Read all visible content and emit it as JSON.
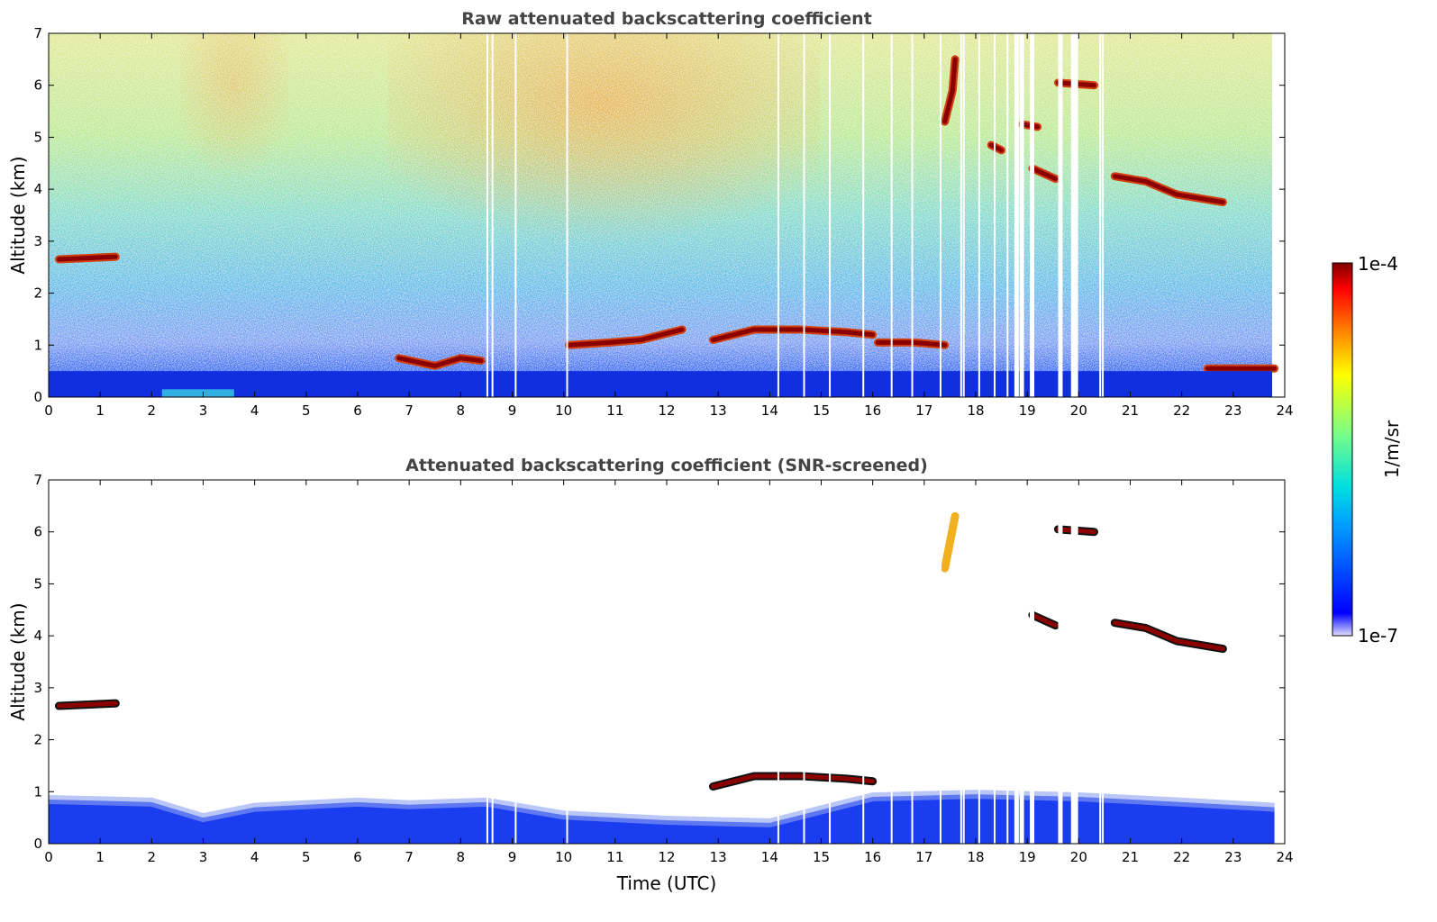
{
  "chart_data": [
    {
      "type": "heatmap",
      "title": "Raw attenuated backscattering coefficient",
      "xlabel": "",
      "ylabel": "Altitude (km)",
      "xlim": [
        0,
        24
      ],
      "ylim": [
        0,
        7
      ],
      "x_ticks": [
        "0",
        "1",
        "2",
        "3",
        "4",
        "5",
        "6",
        "7",
        "8",
        "9",
        "10",
        "11",
        "12",
        "13",
        "14",
        "15",
        "16",
        "17",
        "18",
        "19",
        "20",
        "21",
        "22",
        "23",
        "24"
      ],
      "y_ticks": [
        "0",
        "1",
        "2",
        "3",
        "4",
        "5",
        "6",
        "7"
      ],
      "features": [
        {
          "kind": "cloud_layer",
          "points": [
            [
              0.2,
              2.65
            ],
            [
              1.3,
              2.7
            ]
          ]
        },
        {
          "kind": "cloud_layer",
          "points": [
            [
              6.8,
              0.75
            ],
            [
              7.5,
              0.6
            ],
            [
              8.0,
              0.75
            ],
            [
              8.4,
              0.7
            ]
          ]
        },
        {
          "kind": "cloud_layer",
          "points": [
            [
              10.1,
              1.0
            ],
            [
              10.9,
              1.05
            ],
            [
              11.5,
              1.1
            ],
            [
              12.3,
              1.3
            ]
          ]
        },
        {
          "kind": "cloud_layer",
          "points": [
            [
              12.9,
              1.1
            ],
            [
              13.7,
              1.3
            ],
            [
              14.6,
              1.3
            ],
            [
              15.5,
              1.25
            ],
            [
              16.0,
              1.2
            ]
          ]
        },
        {
          "kind": "cloud_layer",
          "points": [
            [
              16.1,
              1.05
            ],
            [
              16.8,
              1.05
            ],
            [
              17.4,
              1.0
            ]
          ]
        },
        {
          "kind": "cloud_layer",
          "points": [
            [
              17.4,
              5.3
            ],
            [
              17.55,
              5.9
            ],
            [
              17.6,
              6.5
            ]
          ]
        },
        {
          "kind": "cloud_layer",
          "points": [
            [
              19.1,
              4.4
            ],
            [
              19.55,
              4.2
            ]
          ]
        },
        {
          "kind": "cloud_layer",
          "points": [
            [
              19.6,
              6.05
            ],
            [
              20.3,
              6.0
            ]
          ]
        },
        {
          "kind": "cloud_layer",
          "points": [
            [
              20.7,
              4.25
            ],
            [
              21.3,
              4.15
            ],
            [
              21.9,
              3.9
            ],
            [
              22.8,
              3.75
            ]
          ]
        },
        {
          "kind": "cloud_layer",
          "points": [
            [
              22.5,
              0.55
            ],
            [
              23.8,
              0.55
            ]
          ]
        },
        {
          "kind": "cloud_layer",
          "points": [
            [
              18.9,
              5.25
            ],
            [
              19.2,
              5.2
            ]
          ]
        },
        {
          "kind": "cloud_layer",
          "points": [
            [
              18.3,
              4.85
            ],
            [
              18.5,
              4.75
            ]
          ]
        }
      ]
    },
    {
      "type": "heatmap",
      "title": "Attenuated backscattering coefficient (SNR-screened)",
      "xlabel": "Time (UTC)",
      "ylabel": "Altitude (km)",
      "xlim": [
        0,
        24
      ],
      "ylim": [
        0,
        7
      ],
      "x_ticks": [
        "0",
        "1",
        "2",
        "3",
        "4",
        "5",
        "6",
        "7",
        "8",
        "9",
        "10",
        "11",
        "12",
        "13",
        "14",
        "15",
        "16",
        "17",
        "18",
        "19",
        "20",
        "21",
        "22",
        "23",
        "24"
      ],
      "y_ticks": [
        "0",
        "1",
        "2",
        "3",
        "4",
        "5",
        "6",
        "7"
      ],
      "features": [
        {
          "kind": "boundary_layer",
          "points": [
            [
              0,
              0.85
            ],
            [
              2.0,
              0.8
            ],
            [
              3.0,
              0.5
            ],
            [
              4.0,
              0.7
            ],
            [
              6.0,
              0.8
            ],
            [
              7.0,
              0.75
            ],
            [
              8.5,
              0.8
            ],
            [
              10.0,
              0.55
            ],
            [
              12.0,
              0.45
            ],
            [
              14.0,
              0.4
            ],
            [
              16.0,
              0.9
            ],
            [
              18.0,
              0.95
            ],
            [
              20.0,
              0.9
            ],
            [
              22.0,
              0.8
            ],
            [
              23.8,
              0.7
            ]
          ]
        },
        {
          "kind": "cloud_layer",
          "points": [
            [
              0.2,
              2.65
            ],
            [
              1.3,
              2.7
            ]
          ]
        },
        {
          "kind": "cloud_layer",
          "points": [
            [
              12.9,
              1.1
            ],
            [
              13.7,
              1.3
            ],
            [
              14.6,
              1.3
            ],
            [
              15.5,
              1.25
            ],
            [
              16.0,
              1.2
            ]
          ]
        },
        {
          "kind": "cloud_layer",
          "points": [
            [
              20.7,
              4.25
            ],
            [
              21.3,
              4.15
            ],
            [
              21.9,
              3.9
            ],
            [
              22.8,
              3.75
            ]
          ]
        },
        {
          "kind": "cloud_layer",
          "points": [
            [
              19.1,
              4.4
            ],
            [
              19.55,
              4.2
            ]
          ]
        },
        {
          "kind": "cloud_layer",
          "points": [
            [
              19.6,
              6.05
            ],
            [
              20.3,
              6.0
            ]
          ]
        },
        {
          "kind": "plume",
          "points": [
            [
              17.4,
              5.3
            ],
            [
              17.6,
              6.3
            ]
          ]
        }
      ]
    }
  ],
  "colorbar": {
    "label": "1/m/sr",
    "max_label": "1e-4",
    "min_label": "1e-7",
    "colormap": "jet",
    "scale": "log"
  },
  "colors": {
    "high": "#7f0000",
    "low": "#00007f",
    "axis": "#000000",
    "title": "#444444"
  }
}
